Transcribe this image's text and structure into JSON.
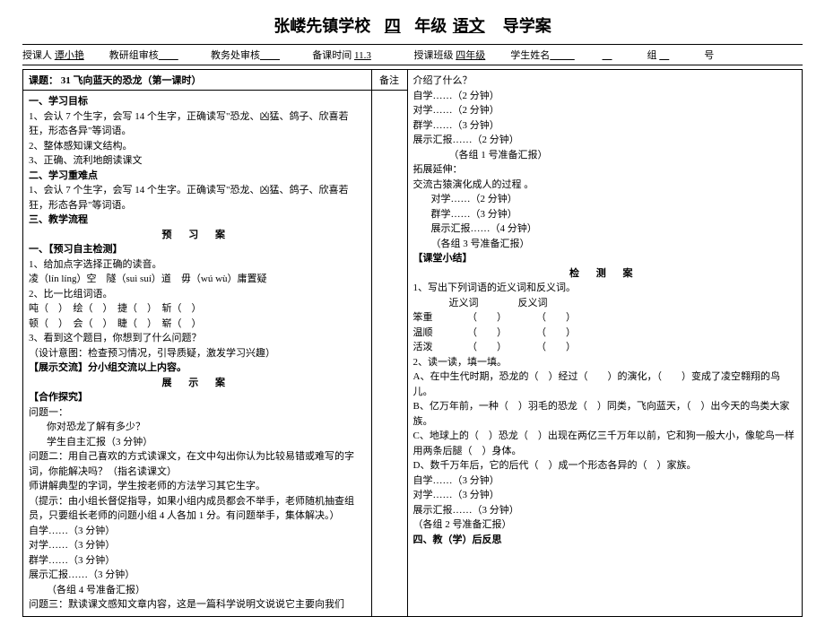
{
  "title": {
    "school": "张嵝先镇学校",
    "grade": "四",
    "grade_label": "年级",
    "subject": "语文",
    "doc_type": "导学案"
  },
  "header": {
    "teacher_label": "授课人",
    "teacher": "谭小艳",
    "review1_label": "教研组审核",
    "review2_label": "教务处审核",
    "prep_time_label": "备课时间",
    "prep_time": "11.3",
    "class_label": "授课班级",
    "class": "四年级",
    "student_label": "学生姓名",
    "group_label": "组",
    "number_label": "号"
  },
  "topic": {
    "label": "课题：",
    "text": "31 飞向蓝天的恐龙（第一课时）",
    "notes_label": "备注"
  },
  "left": {
    "s1_title": "一、学习目标",
    "s1_l1": "1、会认 7 个生字，会写 14 个生字，正确读写\"恐龙、凶猛、鸽子、欣喜若狂，形态各异\"等词语。",
    "s1_l2": "2、整体感知课文结构。",
    "s1_l3": "3、正确、流利地朗读课文",
    "s2_title": "二、学习重难点",
    "s2_l1": "1、会认 7 个生字，会写 14 个生字。正确读写\"恐龙、凶猛、鸽子、欣喜若狂，形态各异\"等词语。",
    "s3_title": "三、教学流程",
    "preview_title": "预 习 案",
    "p1_title": "一、【预习自主检测】",
    "p1_l1": "1、给加点字选择正确的读音。",
    "p1_l2": "凌（lín líng）空　隧（suì suí）道　毋（wú wù）庸置疑",
    "p1_l3": "2、比一比组词语。",
    "p1_l4": "吨（　）　绘（　）　捷（　）　斩（　）",
    "p1_l5": "顿（　）　会（　）　睫（　）　崭（　）",
    "p1_l6": "3、看到这个题目，你想到了什么问题？",
    "p1_l7": "（设计意图：检查预习情况，引导质疑，激发学习兴趣）",
    "p2_title": "【展示交流】分小组交流以上内容。",
    "show_title": "展 示 案",
    "p3_title": "【合作探究】",
    "p3_l1": "问题一：",
    "p3_l2": "你对恐龙了解有多少？",
    "p3_l3": "学生自主汇报（3 分钟）",
    "p3_l4": "问题二：用自己喜欢的方式读课文，在文中勾出你认为比较易错或难写的字词，你能解决吗？（指名读课文）",
    "p3_l5": "师讲解典型的字词，学生按老师的方法学习其它生字。",
    "p3_l6": "（提示：由小组长督促指导，如果小组内成员都会不举手，老师随机抽查组员，只要组长老师的问题小组 4 人各加 1 分。有问题举手，集体解决。）",
    "p3_l7": "自学……（3 分钟）",
    "p3_l8": "对学……（3 分钟）",
    "p3_l9": "群学……（3 分钟）",
    "p3_l10": "展示汇报……（3 分钟）",
    "p3_l11": "（各组 4 号准备汇报）",
    "p3_l12": "问题三：默读课文感知文章内容，这是一篇科学说明文说说它主要向我们"
  },
  "right": {
    "r1": "介绍了什么？",
    "r2": "自学……（2 分钟）",
    "r3": "对学……（2 分钟）",
    "r4": "群学……（3 分钟）",
    "r5": "展示汇报……（2 分钟）",
    "r6": "（各组 1 号准备汇报）",
    "r7": "拓展延伸：",
    "r8": "交流古猿演化成人的过程 。",
    "r9": "对学……（2 分钟）",
    "r10": "群学……（3 分钟）",
    "r11": "展示汇报……（4 分钟）",
    "r12": "（各组 3 号准备汇报）",
    "summary_title": "【课堂小结】",
    "test_title": "检 测 案",
    "t1": "1、写出下列词语的近义词和反义词。",
    "t2": "近义词　　　　反义词",
    "t3": "笨重　　　　（　　）　　　　（　　）",
    "t4": "温顺　　　　（　　）　　　　（　　）",
    "t5": "活泼　　　　（　　）　　　　（　　）",
    "t6": "2、读一读，填一填。",
    "t7": "A、在中生代时期，恐龙的（　）经过（　　）的演化，（　　）变成了凌空翱翔的鸟儿。",
    "t8": "B、亿万年前，一种（　）羽毛的恐龙（　）同类，飞向蓝天，（　）出今天的鸟类大家族。",
    "t9": "C、地球上的（　）恐龙（　）出现在两亿三千万年以前，它和狗一般大小，像鸵鸟一样用两条后腿（　）身体。",
    "t10": "D、数千万年后，它的后代（　）成一个形态各异的（　）家族。",
    "t11": "自学……（3 分钟）",
    "t12": "对学……（3 分钟）",
    "t13": "展示汇报……（3 分钟）",
    "t14": "（各组 2 号准备汇报）",
    "reflect_title": "四、教（学）后反思"
  }
}
